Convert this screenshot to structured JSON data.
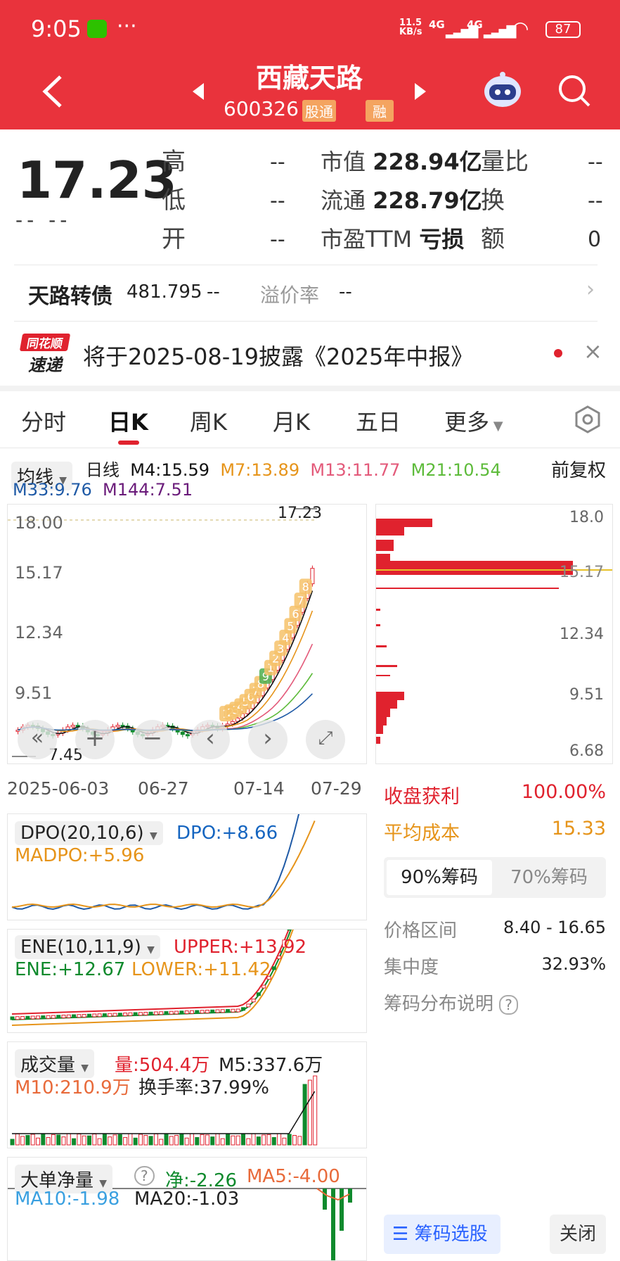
{
  "status_bar": {
    "time": "9:05",
    "net_speed": "11.5",
    "net_unit": "KB/s",
    "sig1": "4G",
    "sig2": "4G",
    "battery": "87"
  },
  "header": {
    "title": "西藏天路",
    "code": "600326",
    "badge1": "股通",
    "badge2": "融"
  },
  "quote": {
    "price": "17.23",
    "change": "-- --",
    "high_label": "高",
    "high": "--",
    "low_label": "低",
    "low": "--",
    "open_label": "开",
    "open": "--",
    "mktcap_label": "市值",
    "mktcap": "228.94亿",
    "float_label": "流通",
    "float": "228.79亿",
    "pe_label": "市盈TTM",
    "pe": "亏损",
    "vol_ratio_label": "量比",
    "vol_ratio": "--",
    "turnover_label": "换",
    "turnover": "--",
    "amount_label": "额",
    "amount": "0"
  },
  "bond": {
    "name": "天路转债",
    "price": "481.795",
    "change": "--",
    "premium_label": "溢价率",
    "premium": "--"
  },
  "notice": {
    "logo1": "同花顺",
    "logo2": "速递",
    "text": "将于2025-08-19披露《2025年中报》"
  },
  "tabs": [
    "分时",
    "日K",
    "周K",
    "月K",
    "五日",
    "更多"
  ],
  "ma_bar": {
    "dropdown": "均线",
    "period": "日线",
    "m4": "M4:15.59",
    "m7": "M7:13.89",
    "m13": "M13:11.77",
    "m21": "M21:10.54",
    "m33": "M33:9.76",
    "m144": "M144:7.51",
    "adjust": "前复权",
    "colors": {
      "m4": "#111111",
      "m7": "#e6941a",
      "m13": "#e35a7a",
      "m21": "#5dbb3a",
      "m33": "#1f5aa6",
      "m144": "#6a1b7a"
    }
  },
  "kchart": {
    "yticks": [
      "18.00",
      "15.17",
      "12.34",
      "9.51"
    ],
    "high_label": "17.23",
    "low_label": "7.45",
    "xticks": [
      "2025-06-03",
      "06-27",
      "07-14",
      "07-29"
    ],
    "nine_labels": [
      "1",
      "2",
      "3",
      "4",
      "5",
      "6",
      "7",
      "8",
      "9",
      "1",
      "2",
      "3",
      "4",
      "5",
      "6",
      "7",
      "8"
    ]
  },
  "chips": {
    "yticks": [
      "18.0",
      "15.17",
      "12.34",
      "9.51",
      "6.68"
    ],
    "profit_label": "收盘获利",
    "profit": "100.00%",
    "cost_label": "平均成本",
    "cost": "15.33",
    "tab90": "90%筹码",
    "tab70": "70%筹码",
    "range_label": "价格区间",
    "range": "8.40 - 16.65",
    "concentration_label": "集中度",
    "concentration": "32.93%",
    "explain": "筹码分布说明",
    "pick_button": "筹码选股",
    "close_button": "关闭"
  },
  "dpo": {
    "name": "DPO(20,10,6)",
    "dpo": "DPO:+8.66",
    "madpo": "MADPO:+5.96"
  },
  "ene": {
    "name": "ENE(10,11,9)",
    "upper": "UPPER:+13.92",
    "ene": "ENE:+12.67",
    "lower": "LOWER:+11.42"
  },
  "volume": {
    "name": "成交量",
    "vol": "量:504.4万",
    "m5": "M5:337.6万",
    "m10": "M10:210.9万",
    "turnover": "换手率:37.99%"
  },
  "bigorder": {
    "name": "大单净量",
    "net": "净:-2.26",
    "ma5": "MA5:-4.00",
    "ma10": "MA10:-1.98",
    "ma20": "MA20:-1.03"
  }
}
